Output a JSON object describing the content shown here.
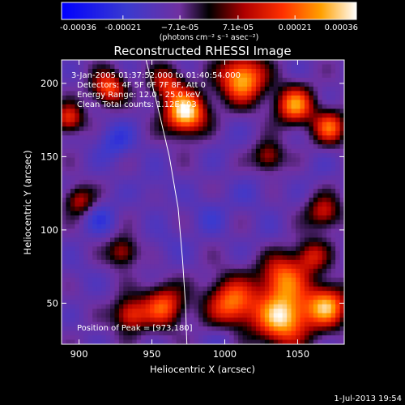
{
  "chart_data": {
    "type": "heatmap",
    "title": "Reconstructed RHESSI Image",
    "xlabel": "Heliocentric X (arcsec)",
    "ylabel": "Heliocentric Y (arcsec)",
    "xlim": [
      888,
      1082
    ],
    "ylim": [
      22,
      216
    ],
    "x_ticks": [
      900,
      950,
      1000,
      1050
    ],
    "y_ticks": [
      50,
      100,
      150,
      200
    ],
    "colorbar": {
      "units": "(photons cm⁻² s⁻¹ asec⁻²)",
      "range": [
        -0.00036,
        0.00036
      ],
      "tick_values": [
        -0.00036,
        -0.00021,
        -7.1e-05,
        7.1e-05,
        0.00021,
        0.00036
      ],
      "tick_labels": [
        "-0.00036",
        "-0.00021",
        "−7.1e-05",
        "7.1e-05",
        "0.00021",
        "0.00036"
      ]
    },
    "annotations": [
      "3-Jan-2005 01:37:52.000 to 01:40:54.000",
      "Detectors: 4F 5F 6F 7F 8F, Att 0",
      "Energy Range: 12.0 - 25.0 keV",
      "Clean      Total counts: 1.12E+03"
    ],
    "peak_label": "Position of Peak = [973,180]",
    "peak": [
      973,
      180
    ],
    "peak_value": 0.00036,
    "limb_curve": [
      [
        946,
        216
      ],
      [
        955,
        180
      ],
      [
        962,
        150
      ],
      [
        968,
        115
      ],
      [
        971,
        80
      ],
      [
        973,
        50
      ],
      [
        974,
        22
      ]
    ],
    "blobs": [
      {
        "x": 973,
        "y": 180,
        "v": 1.0,
        "s": 10
      },
      {
        "x": 1012,
        "y": 203,
        "v": 0.85,
        "s": 11
      },
      {
        "x": 1048,
        "y": 185,
        "v": 0.7,
        "s": 9
      },
      {
        "x": 1072,
        "y": 170,
        "v": 0.55,
        "s": 8
      },
      {
        "x": 1040,
        "y": 40,
        "v": 0.9,
        "s": 13
      },
      {
        "x": 1070,
        "y": 48,
        "v": 0.75,
        "s": 10
      },
      {
        "x": 1005,
        "y": 50,
        "v": 0.65,
        "s": 12
      },
      {
        "x": 1040,
        "y": 68,
        "v": 0.55,
        "s": 11
      },
      {
        "x": 958,
        "y": 48,
        "v": 0.55,
        "s": 10
      },
      {
        "x": 935,
        "y": 42,
        "v": 0.45,
        "s": 8
      },
      {
        "x": 920,
        "y": 197,
        "v": 0.55,
        "s": 8
      },
      {
        "x": 893,
        "y": 176,
        "v": 0.45,
        "s": 7
      },
      {
        "x": 1068,
        "y": 112,
        "v": 0.35,
        "s": 8
      },
      {
        "x": 1060,
        "y": 82,
        "v": 0.3,
        "s": 8
      },
      {
        "x": 1030,
        "y": 150,
        "v": 0.3,
        "s": 7
      },
      {
        "x": 900,
        "y": 120,
        "v": 0.3,
        "s": 7
      },
      {
        "x": 930,
        "y": 85,
        "v": 0.3,
        "s": 7
      },
      {
        "x": 960,
        "y": 200,
        "v": 0.35,
        "s": 8
      },
      {
        "x": 925,
        "y": 160,
        "v": -0.6,
        "s": 9
      },
      {
        "x": 915,
        "y": 108,
        "v": -0.55,
        "s": 8
      },
      {
        "x": 952,
        "y": 130,
        "v": -0.4,
        "s": 9
      },
      {
        "x": 990,
        "y": 110,
        "v": -0.45,
        "s": 10
      },
      {
        "x": 1020,
        "y": 125,
        "v": -0.4,
        "s": 9
      },
      {
        "x": 1000,
        "y": 160,
        "v": -0.35,
        "s": 9
      },
      {
        "x": 1062,
        "y": 140,
        "v": -0.35,
        "s": 8
      },
      {
        "x": 960,
        "y": 90,
        "v": -0.4,
        "s": 9
      },
      {
        "x": 1030,
        "y": 95,
        "v": -0.35,
        "s": 9
      },
      {
        "x": 900,
        "y": 70,
        "v": -0.35,
        "s": 8
      },
      {
        "x": 1000,
        "y": 28,
        "v": -0.45,
        "s": 8
      },
      {
        "x": 1050,
        "y": 205,
        "v": -0.3,
        "s": 8
      }
    ]
  },
  "footer": {
    "timestamp": "1-Jul-2013 19:54"
  }
}
